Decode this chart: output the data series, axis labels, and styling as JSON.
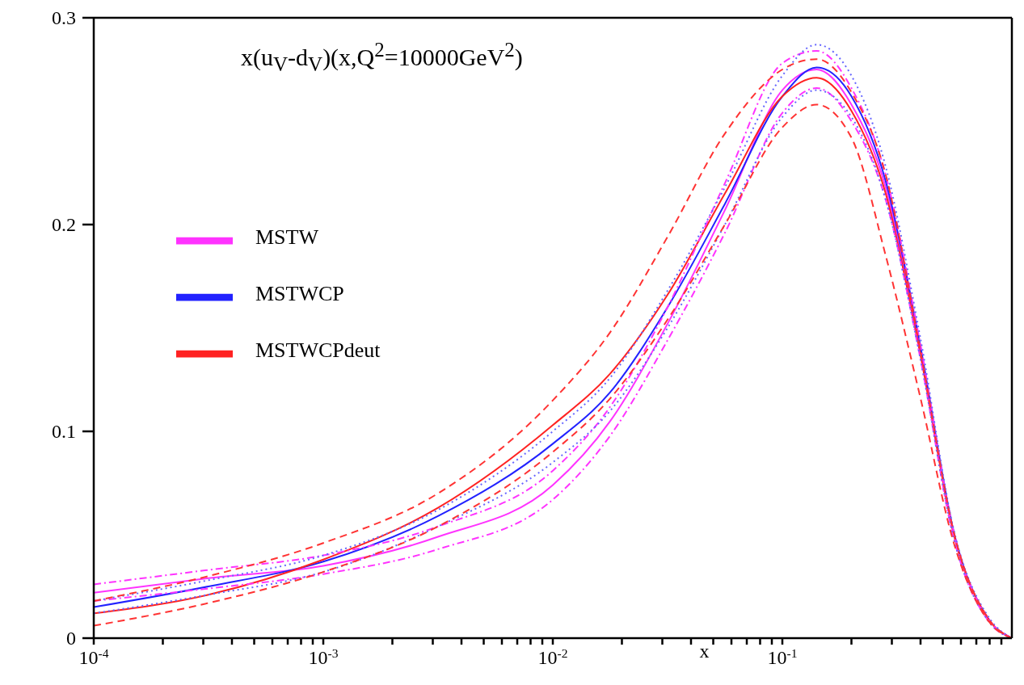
{
  "chart_data": {
    "type": "line",
    "title": "x(u$_{V}$-d$_{V}$)(x,Q$^{2}$=10000GeV$^{2}$)",
    "xlabel": "x",
    "log": "x",
    "grid": false,
    "legend": "left",
    "marker": "none",
    "x": [
      0.0001,
      0.000316,
      0.001,
      0.00316,
      0.01,
      0.0178,
      0.0316,
      0.0562,
      0.1,
      0.141,
      0.2,
      0.282,
      0.398,
      0.562,
      0.794,
      1
    ],
    "xlim": [
      0.0001,
      1
    ],
    "xticks": [
      {
        "value": 0.0001,
        "label": "10$^{-4}$"
      },
      {
        "value": 0.0002,
        "label": null
      },
      {
        "value": 0.0003,
        "label": null
      },
      {
        "value": 0.0004,
        "label": null
      },
      {
        "value": 0.0005,
        "label": null
      },
      {
        "value": 0.0006,
        "label": null
      },
      {
        "value": 0.0007,
        "label": null
      },
      {
        "value": 0.0008,
        "label": null
      },
      {
        "value": 0.0009,
        "label": null
      },
      {
        "value": 0.001,
        "label": "10$^{-3}$"
      },
      {
        "value": 0.002,
        "label": null
      },
      {
        "value": 0.003,
        "label": null
      },
      {
        "value": 0.004,
        "label": null
      },
      {
        "value": 0.005,
        "label": null
      },
      {
        "value": 0.006,
        "label": null
      },
      {
        "value": 0.007,
        "label": null
      },
      {
        "value": 0.008,
        "label": null
      },
      {
        "value": 0.009,
        "label": null
      },
      {
        "value": 0.01,
        "label": "10$^{-2}$"
      },
      {
        "value": 0.02,
        "label": null
      },
      {
        "value": 0.03,
        "label": null
      },
      {
        "value": 0.04,
        "label": null
      },
      {
        "value": 0.05,
        "label": null
      },
      {
        "value": 0.06,
        "label": null
      },
      {
        "value": 0.07,
        "label": null
      },
      {
        "value": 0.08,
        "label": null
      },
      {
        "value": 0.09,
        "label": null
      },
      {
        "value": 0.1,
        "label": "10$^{-1}$"
      },
      {
        "value": 0.2,
        "label": null
      },
      {
        "value": 0.3,
        "label": null
      },
      {
        "value": 0.4,
        "label": null
      },
      {
        "value": 0.5,
        "label": null
      },
      {
        "value": 0.6,
        "label": null
      },
      {
        "value": 0.7,
        "label": null
      },
      {
        "value": 0.8,
        "label": null
      },
      {
        "value": 0.9,
        "label": null
      }
    ],
    "ylim": [
      0,
      0.3
    ],
    "yticks": [
      0,
      0.1,
      0.2,
      0.3
    ],
    "series": [
      {
        "name": "MSTW",
        "color": "#ff33ff",
        "line_style": "solid",
        "values": [
          0.022,
          0.029,
          0.035,
          0.049,
          0.074,
          0.105,
          0.152,
          0.207,
          0.265,
          0.275,
          0.258,
          0.218,
          0.14,
          0.049,
          0.009,
          0
        ]
      },
      {
        "name": "MSTWCP",
        "color": "#2222ff",
        "line_style": "solid",
        "values": [
          0.015,
          0.025,
          0.037,
          0.059,
          0.094,
          0.119,
          0.16,
          0.21,
          0.262,
          0.276,
          0.262,
          0.221,
          0.142,
          0.05,
          0.009,
          0
        ]
      },
      {
        "name": "MSTWCPdeut",
        "color": "#ff2222",
        "line_style": "solid",
        "values": [
          0.012,
          0.021,
          0.038,
          0.063,
          0.103,
          0.128,
          0.166,
          0.215,
          0.262,
          0.271,
          0.255,
          0.215,
          0.138,
          0.049,
          0.009,
          0
        ]
      },
      {
        "color": "#ff33ff",
        "line_style": "dashdot",
        "values": [
          0.026,
          0.033,
          0.04,
          0.054,
          0.081,
          0.112,
          0.16,
          0.22,
          0.278,
          0.284,
          0.266,
          0.224,
          0.143,
          0.05,
          0.009,
          0
        ]
      },
      {
        "color": "#ff33ff",
        "line_style": "dashdot",
        "values": [
          0.018,
          0.024,
          0.031,
          0.043,
          0.067,
          0.098,
          0.144,
          0.196,
          0.254,
          0.266,
          0.25,
          0.212,
          0.136,
          0.047,
          0.008,
          0
        ]
      },
      {
        "color": "#6666ff",
        "line_style": "dotted",
        "values": [
          0.018,
          0.028,
          0.04,
          0.062,
          0.1,
          0.126,
          0.168,
          0.218,
          0.272,
          0.287,
          0.272,
          0.228,
          0.146,
          0.051,
          0.01,
          0
        ]
      },
      {
        "color": "#6666ff",
        "line_style": "dotted",
        "values": [
          0.012,
          0.021,
          0.032,
          0.054,
          0.085,
          0.11,
          0.15,
          0.2,
          0.252,
          0.265,
          0.252,
          0.212,
          0.136,
          0.047,
          0.008,
          0
        ]
      },
      {
        "color": "#ff3333",
        "line_style": "dashed",
        "values": [
          0.018,
          0.03,
          0.046,
          0.07,
          0.115,
          0.148,
          0.194,
          0.244,
          0.275,
          0.28,
          0.264,
          0.224,
          0.14,
          0.05,
          0.009,
          0
        ]
      },
      {
        "color": "#ff3333",
        "line_style": "dashed",
        "values": [
          0.006,
          0.017,
          0.032,
          0.054,
          0.09,
          0.116,
          0.154,
          0.2,
          0.247,
          0.258,
          0.242,
          0.185,
          0.117,
          0.045,
          0.008,
          0
        ]
      }
    ]
  }
}
